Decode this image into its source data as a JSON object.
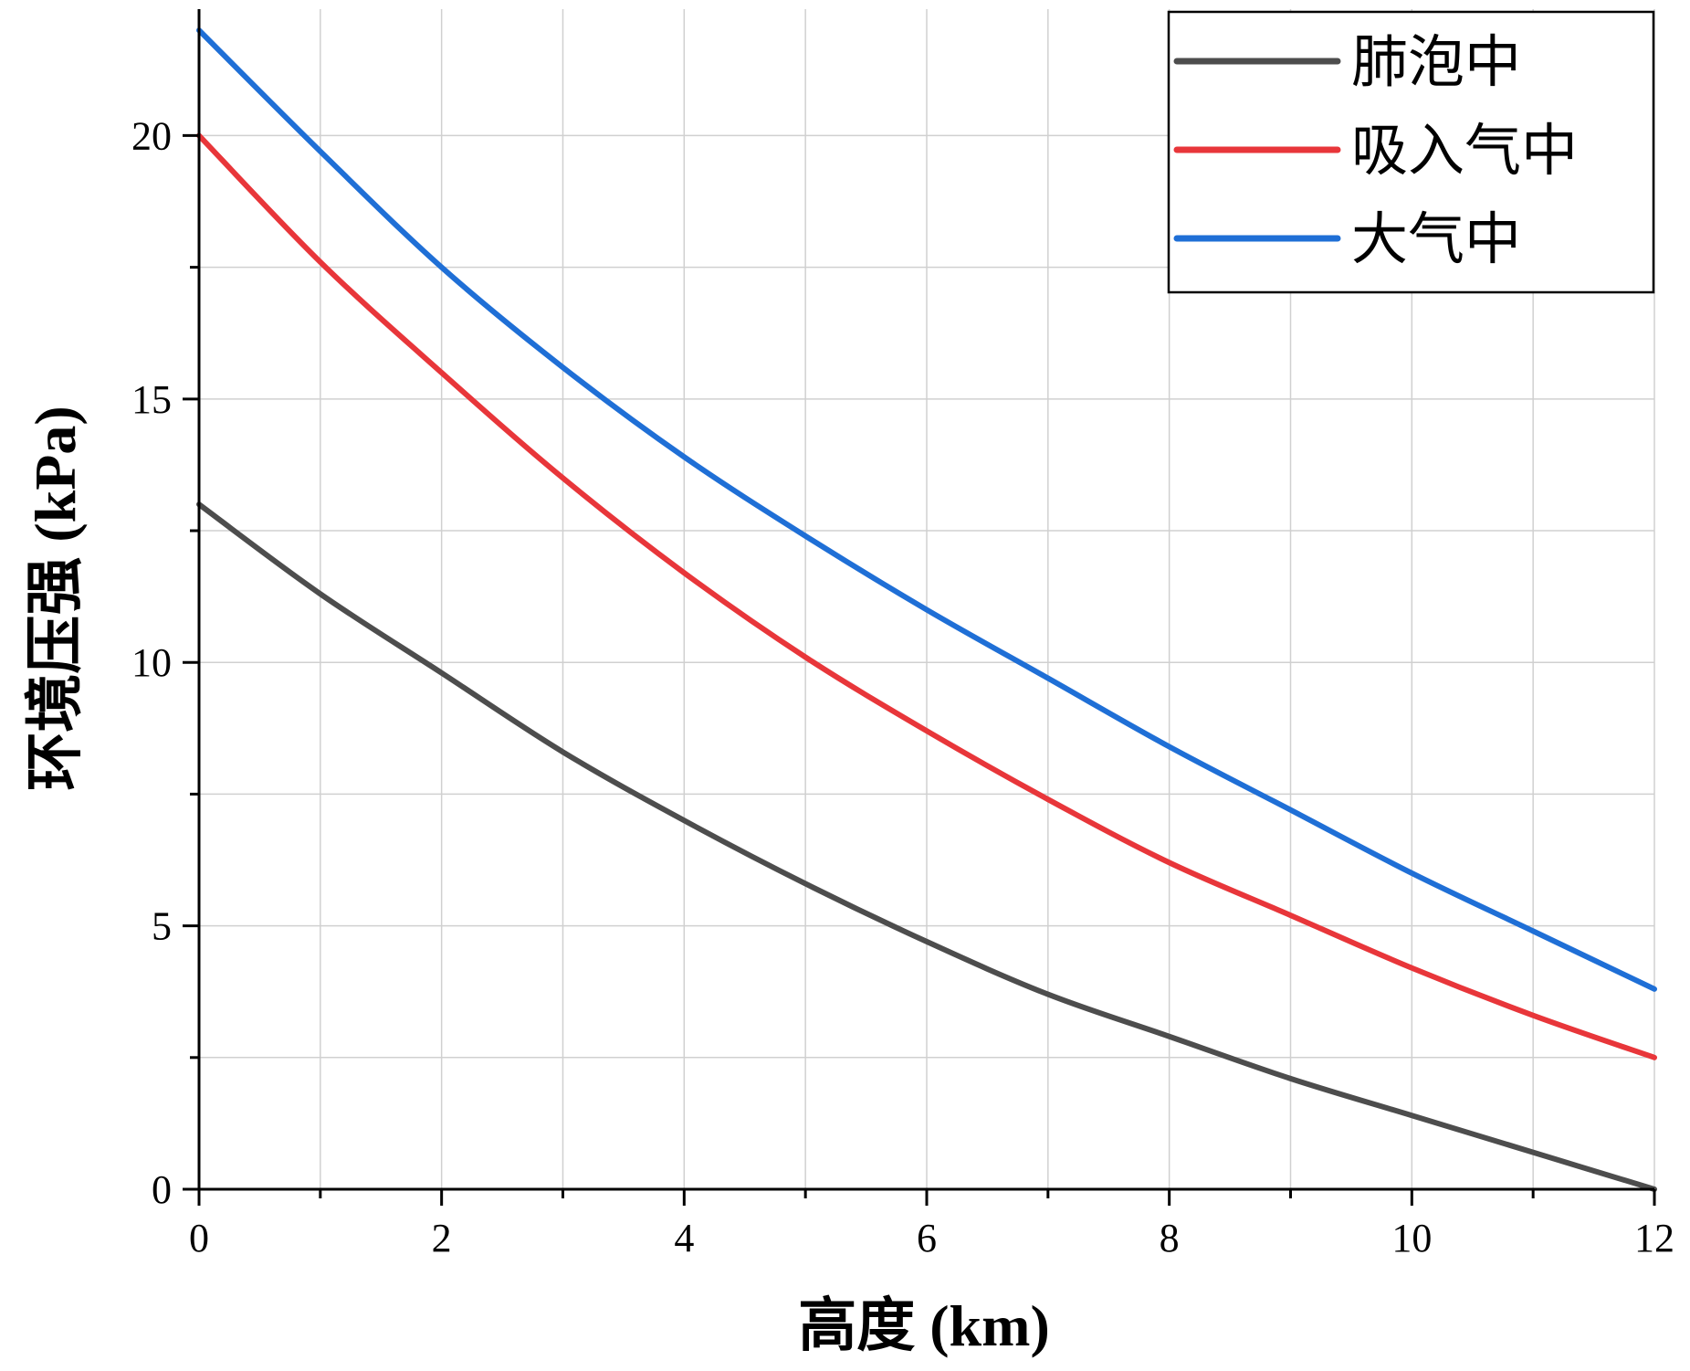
{
  "chart_data": {
    "type": "line",
    "xlabel": "高度 (km)",
    "ylabel": "环境压强 (kPa)",
    "xlim": [
      0,
      12
    ],
    "ylim": [
      0,
      22.4
    ],
    "x_ticks": [
      0,
      2,
      4,
      6,
      8,
      10,
      12
    ],
    "y_ticks": [
      0,
      5,
      10,
      15,
      20
    ],
    "grid": true,
    "legend_position": "top-right",
    "x": [
      0,
      1,
      2,
      3,
      4,
      5,
      6,
      7,
      8,
      9,
      10,
      11,
      12
    ],
    "series": [
      {
        "name": "肺泡中",
        "color": "#4d4d4d",
        "values": [
          13.0,
          11.3,
          9.8,
          8.3,
          7.0,
          5.8,
          4.7,
          3.7,
          2.9,
          2.1,
          1.4,
          0.7,
          0.0
        ]
      },
      {
        "name": "吸入气中",
        "color": "#e8363a",
        "values": [
          20.0,
          17.6,
          15.5,
          13.5,
          11.7,
          10.1,
          8.7,
          7.4,
          6.2,
          5.2,
          4.2,
          3.3,
          2.5
        ]
      },
      {
        "name": "大气中",
        "color": "#1f6fd6",
        "values": [
          22.0,
          19.7,
          17.5,
          15.6,
          13.9,
          12.4,
          11.0,
          9.7,
          8.4,
          7.2,
          6.0,
          4.9,
          3.8
        ]
      }
    ]
  }
}
